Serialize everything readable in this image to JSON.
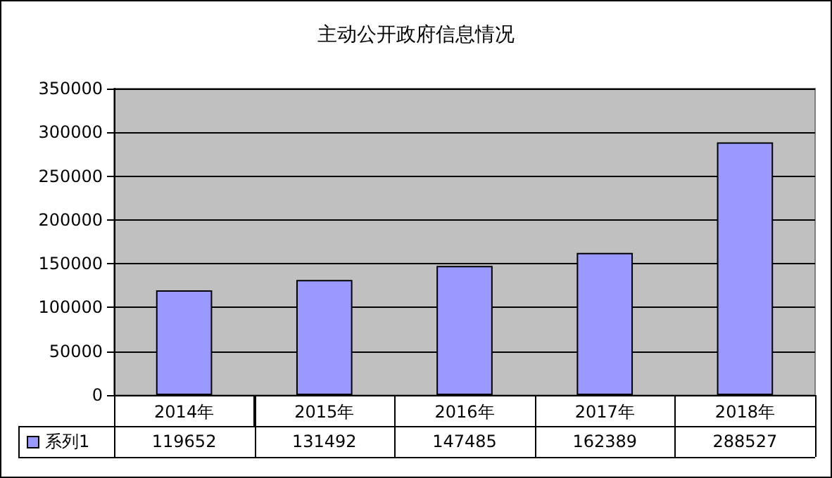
{
  "chart_data": {
    "type": "bar",
    "title": "主动公开政府信息情况",
    "categories": [
      "2014年",
      "2015年",
      "2016年",
      "2017年",
      "2018年"
    ],
    "series": [
      {
        "name": "系列1",
        "color": "#9999ff",
        "values": [
          119652,
          131492,
          147485,
          162389,
          288527
        ]
      }
    ],
    "ylim": [
      0,
      350000
    ],
    "yticks": [
      0,
      50000,
      100000,
      150000,
      200000,
      250000,
      300000,
      350000
    ],
    "grid": "y",
    "legend": "bottom",
    "data_labels": true
  }
}
